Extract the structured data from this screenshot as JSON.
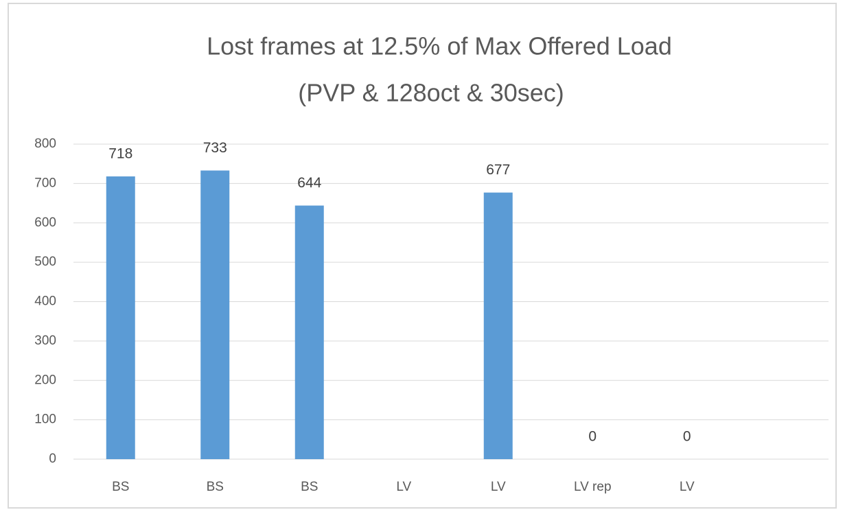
{
  "chart_data": {
    "type": "bar",
    "title": "Lost frames at 12.5% of Max Offered Load",
    "subtitle": "(PVP & 128oct & 30sec)",
    "categories": [
      "BS",
      "BS",
      "BS",
      "LV",
      "LV",
      "LV rep",
      "LV",
      null
    ],
    "values": [
      718,
      733,
      644,
      null,
      677,
      0,
      0,
      null
    ],
    "color": "#5b9bd5",
    "ylim": [
      0,
      800
    ],
    "yticks": [
      0,
      100,
      200,
      300,
      400,
      500,
      600,
      700,
      800
    ],
    "grid": true,
    "data_labels": true
  }
}
